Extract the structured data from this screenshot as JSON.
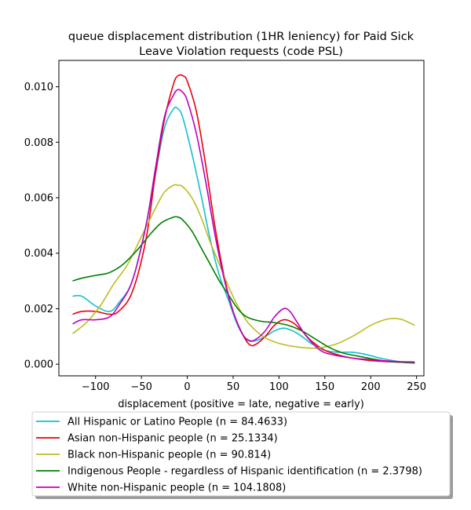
{
  "chart_data": {
    "type": "line",
    "title": "queue displacement distribution (1HR leniency) for Paid Sick Leave Violation  requests (code PSL)",
    "title_lines": [
      "queue displacement distribution (1HR leniency) for Paid Sick",
      "Leave Violation  requests (code PSL)"
    ],
    "xlabel": "displacement (positive = late, negative = early)",
    "ylabel": "",
    "xlim": [
      -140,
      258
    ],
    "ylim": [
      -0.00042,
      0.01095
    ],
    "x_ticks": [
      -100,
      -50,
      0,
      50,
      100,
      150,
      200,
      250
    ],
    "x_tick_labels": [
      "−100",
      "−50",
      "0",
      "50",
      "100",
      "150",
      "200",
      "250"
    ],
    "y_ticks": [
      0.0,
      0.002,
      0.004,
      0.006,
      0.008,
      0.01
    ],
    "y_tick_labels": [
      "0.000",
      "0.002",
      "0.004",
      "0.006",
      "0.008",
      "0.010"
    ],
    "grid": false,
    "legend_position": "below-plot",
    "series": [
      {
        "name": "All Hispanic or Latino People (n = 84.4633)",
        "color": "#17becf",
        "points": [
          [
            -125,
            0.00245
          ],
          [
            -115,
            0.00245
          ],
          [
            -100,
            0.0021
          ],
          [
            -85,
            0.0019
          ],
          [
            -75,
            0.0022
          ],
          [
            -60,
            0.003
          ],
          [
            -45,
            0.005
          ],
          [
            -35,
            0.0068
          ],
          [
            -25,
            0.0085
          ],
          [
            -15,
            0.0092
          ],
          [
            -10,
            0.0092
          ],
          [
            -5,
            0.0089
          ],
          [
            5,
            0.0076
          ],
          [
            15,
            0.0061
          ],
          [
            25,
            0.0045
          ],
          [
            35,
            0.0032
          ],
          [
            45,
            0.0023
          ],
          [
            55,
            0.0014
          ],
          [
            65,
            0.00088
          ],
          [
            75,
            0.00085
          ],
          [
            85,
            0.001
          ],
          [
            95,
            0.0012
          ],
          [
            105,
            0.0013
          ],
          [
            115,
            0.0012
          ],
          [
            125,
            0.001
          ],
          [
            135,
            0.00075
          ],
          [
            150,
            0.0005
          ],
          [
            165,
            0.00043
          ],
          [
            180,
            0.00043
          ],
          [
            195,
            0.00035
          ],
          [
            210,
            0.00022
          ],
          [
            230,
            0.0001
          ],
          [
            248,
            6e-05
          ]
        ]
      },
      {
        "name": "Asian non-Hispanic people (n = 25.1334)",
        "color": "#e8000b",
        "points": [
          [
            -125,
            0.0018
          ],
          [
            -115,
            0.0019
          ],
          [
            -100,
            0.0019
          ],
          [
            -85,
            0.0018
          ],
          [
            -75,
            0.0019
          ],
          [
            -60,
            0.0026
          ],
          [
            -45,
            0.0045
          ],
          [
            -35,
            0.0068
          ],
          [
            -25,
            0.0088
          ],
          [
            -15,
            0.0101
          ],
          [
            -10,
            0.0104
          ],
          [
            -5,
            0.0104
          ],
          [
            0,
            0.0102
          ],
          [
            10,
            0.0091
          ],
          [
            20,
            0.0072
          ],
          [
            30,
            0.005
          ],
          [
            40,
            0.0032
          ],
          [
            50,
            0.0019
          ],
          [
            60,
            0.0011
          ],
          [
            68,
            0.0007
          ],
          [
            75,
            0.00072
          ],
          [
            85,
            0.001
          ],
          [
            95,
            0.0014
          ],
          [
            105,
            0.0016
          ],
          [
            115,
            0.0015
          ],
          [
            125,
            0.0012
          ],
          [
            135,
            0.00085
          ],
          [
            150,
            0.0005
          ],
          [
            165,
            0.00033
          ],
          [
            180,
            0.00022
          ],
          [
            200,
            0.00013
          ],
          [
            225,
            8e-05
          ],
          [
            248,
            5e-05
          ]
        ]
      },
      {
        "name": "Black non-Hispanic people (n = 90.814)",
        "color": "#bcbd22",
        "points": [
          [
            -125,
            0.0011
          ],
          [
            -110,
            0.0015
          ],
          [
            -95,
            0.0021
          ],
          [
            -80,
            0.0029
          ],
          [
            -65,
            0.0036
          ],
          [
            -50,
            0.0046
          ],
          [
            -35,
            0.0056
          ],
          [
            -25,
            0.0062
          ],
          [
            -15,
            0.00645
          ],
          [
            -10,
            0.00645
          ],
          [
            -5,
            0.0064
          ],
          [
            5,
            0.006
          ],
          [
            15,
            0.0053
          ],
          [
            25,
            0.0044
          ],
          [
            35,
            0.0036
          ],
          [
            45,
            0.0028
          ],
          [
            55,
            0.0021
          ],
          [
            65,
            0.00155
          ],
          [
            75,
            0.0012
          ],
          [
            85,
            0.00095
          ],
          [
            100,
            0.00075
          ],
          [
            120,
            0.00062
          ],
          [
            140,
            0.00058
          ],
          [
            160,
            0.0007
          ],
          [
            180,
            0.001
          ],
          [
            200,
            0.0014
          ],
          [
            215,
            0.0016
          ],
          [
            225,
            0.00165
          ],
          [
            235,
            0.0016
          ],
          [
            248,
            0.0014
          ]
        ]
      },
      {
        "name": "Indigenous People - regardless of Hispanic identification (n = 2.3798)",
        "color": "#008000",
        "points": [
          [
            -125,
            0.003
          ],
          [
            -115,
            0.0031
          ],
          [
            -100,
            0.0032
          ],
          [
            -85,
            0.0033
          ],
          [
            -70,
            0.0036
          ],
          [
            -55,
            0.0041
          ],
          [
            -40,
            0.0047
          ],
          [
            -28,
            0.0051
          ],
          [
            -15,
            0.0053
          ],
          [
            -10,
            0.0053
          ],
          [
            -5,
            0.0052
          ],
          [
            5,
            0.0048
          ],
          [
            15,
            0.0042
          ],
          [
            25,
            0.0036
          ],
          [
            35,
            0.003
          ],
          [
            45,
            0.0025
          ],
          [
            55,
            0.002
          ],
          [
            65,
            0.0017
          ],
          [
            80,
            0.00155
          ],
          [
            95,
            0.0015
          ],
          [
            110,
            0.0014
          ],
          [
            125,
            0.0012
          ],
          [
            140,
            0.0009
          ],
          [
            155,
            0.0006
          ],
          [
            170,
            0.0004
          ],
          [
            185,
            0.0003
          ],
          [
            200,
            0.0002
          ],
          [
            220,
            0.0001
          ],
          [
            248,
            4e-05
          ]
        ]
      },
      {
        "name": "White non-Hispanic people (n = 104.1808)",
        "color": "#bf00bf",
        "points": [
          [
            -125,
            0.00145
          ],
          [
            -115,
            0.0016
          ],
          [
            -100,
            0.0016
          ],
          [
            -85,
            0.0017
          ],
          [
            -75,
            0.0021
          ],
          [
            -60,
            0.003
          ],
          [
            -45,
            0.005
          ],
          [
            -35,
            0.007
          ],
          [
            -25,
            0.0089
          ],
          [
            -15,
            0.0097
          ],
          [
            -10,
            0.0099
          ],
          [
            -5,
            0.0098
          ],
          [
            0,
            0.0095
          ],
          [
            10,
            0.0083
          ],
          [
            20,
            0.0066
          ],
          [
            30,
            0.0047
          ],
          [
            40,
            0.0031
          ],
          [
            50,
            0.0019
          ],
          [
            60,
            0.0011
          ],
          [
            68,
            0.00085
          ],
          [
            75,
            0.0009
          ],
          [
            85,
            0.0012
          ],
          [
            95,
            0.0017
          ],
          [
            105,
            0.002
          ],
          [
            112,
            0.0019
          ],
          [
            120,
            0.0015
          ],
          [
            130,
            0.001
          ],
          [
            145,
            0.0005
          ],
          [
            160,
            0.00033
          ],
          [
            180,
            0.00022
          ],
          [
            200,
            0.00016
          ],
          [
            225,
            0.0001
          ],
          [
            248,
            8e-05
          ]
        ]
      }
    ]
  }
}
